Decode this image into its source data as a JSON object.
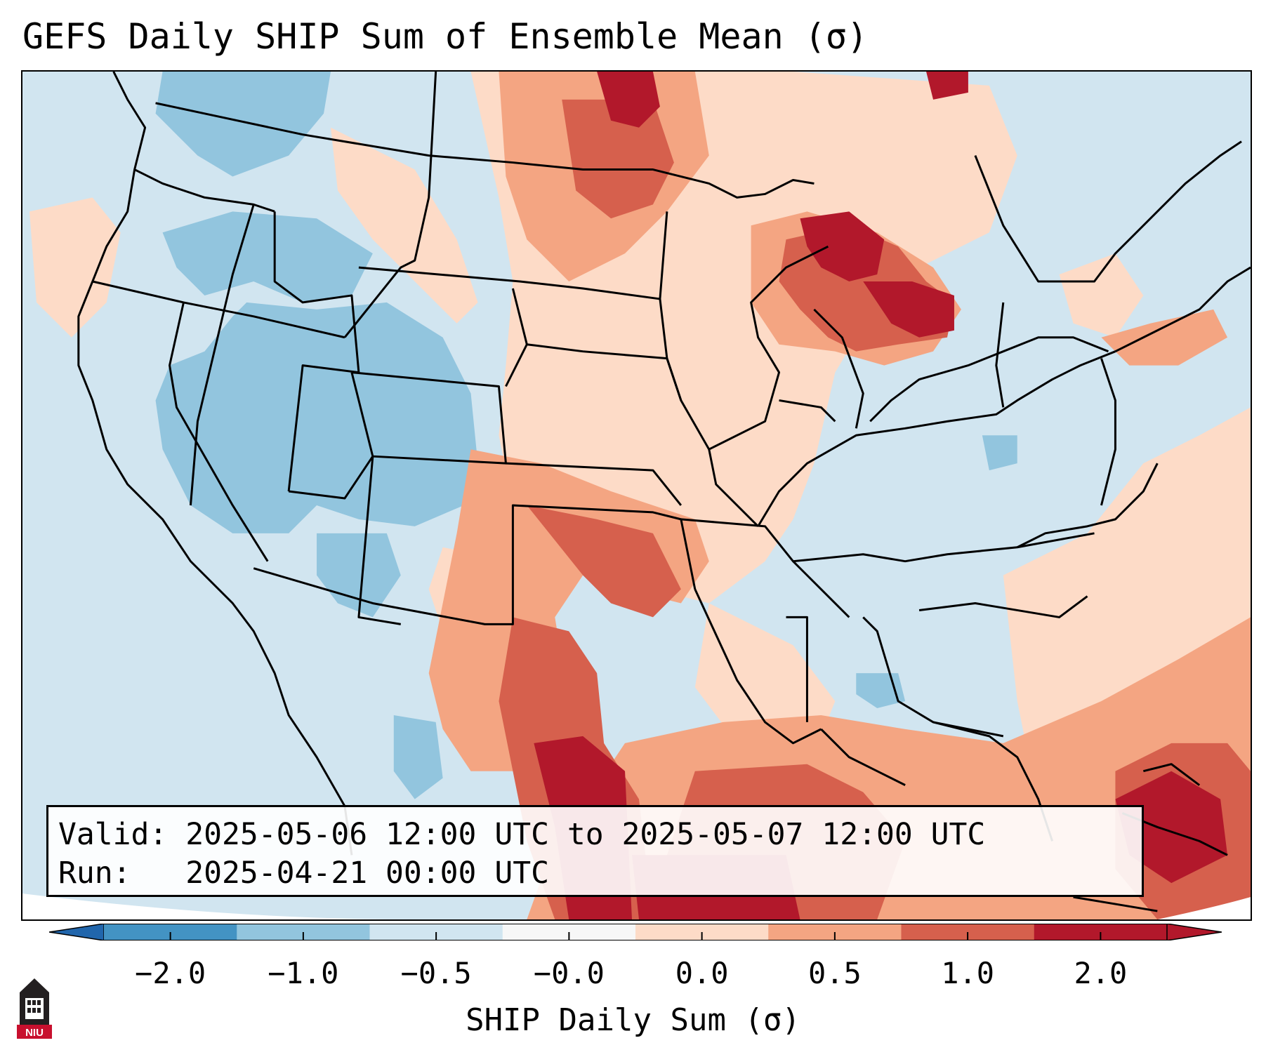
{
  "title": "GEFS Daily SHIP Sum of Ensemble Mean (σ)",
  "info": {
    "valid_line": "Valid: 2025-05-06 12:00 UTC to 2025-05-07 12:00 UTC",
    "run_line": "Run:   2025-04-21 00:00 UTC"
  },
  "colorbar": {
    "label": "SHIP Daily Sum (σ)",
    "ticks": [
      "−2.0",
      "−1.0",
      "−0.5",
      "−0.0",
      "0.0",
      "0.5",
      "1.0",
      "2.0"
    ],
    "colors": [
      "#4393c3",
      "#92c5de",
      "#d1e5f0",
      "#f7f7f7",
      "#fddbc7",
      "#f4a582",
      "#d6604d",
      "#b2182b"
    ],
    "extend_low_color": "#2166ac",
    "extend_high_color": "#b2182b"
  },
  "logo": {
    "text": "NIU",
    "icon": "niu-tower-logo"
  }
}
